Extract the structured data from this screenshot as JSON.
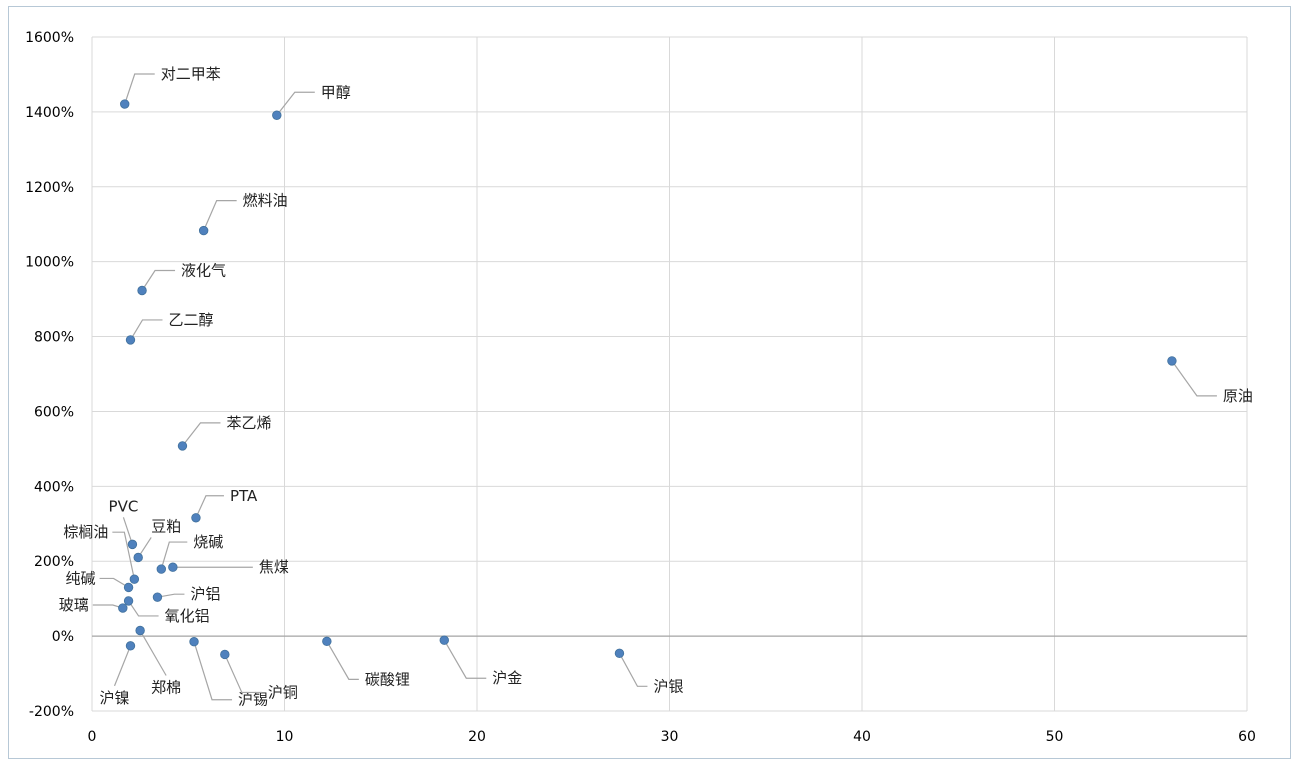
{
  "chart_data": {
    "type": "scatter",
    "title": "",
    "xlabel": "",
    "ylabel": "",
    "xlim": [
      0,
      60
    ],
    "ylim": [
      -200,
      1600
    ],
    "x_ticks": [
      "0",
      "10",
      "20",
      "30",
      "40",
      "50",
      "60"
    ],
    "y_ticks": [
      "-200%",
      "0%",
      "200%",
      "400%",
      "600%",
      "800%",
      "1000%",
      "1200%",
      "1400%",
      "1600%"
    ],
    "grid": true,
    "legend": "none",
    "colors": {
      "point": "#4F81BD",
      "grid": "#D9D9D9",
      "axis": "#A6A6A6",
      "leader": "#A6A6A6",
      "border": "#B7C8D6"
    },
    "points": [
      {
        "label": "对二甲苯",
        "x": 1.7,
        "y": 1421
      },
      {
        "label": "甲醇",
        "x": 9.6,
        "y": 1391
      },
      {
        "label": "燃料油",
        "x": 5.8,
        "y": 1083
      },
      {
        "label": "液化气",
        "x": 2.6,
        "y": 923
      },
      {
        "label": "乙二醇",
        "x": 2.0,
        "y": 791
      },
      {
        "label": "原油",
        "x": 56.1,
        "y": 735
      },
      {
        "label": "苯乙烯",
        "x": 4.7,
        "y": 508
      },
      {
        "label": "PTA",
        "x": 5.4,
        "y": 316
      },
      {
        "label": "PVC",
        "x": 2.1,
        "y": 245
      },
      {
        "label": "豆粕",
        "x": 2.4,
        "y": 210
      },
      {
        "label": "棕榈油",
        "x": 2.2,
        "y": 152
      },
      {
        "label": "烧碱",
        "x": 3.6,
        "y": 179
      },
      {
        "label": "焦煤",
        "x": 4.2,
        "y": 184
      },
      {
        "label": "纯碱",
        "x": 1.9,
        "y": 130
      },
      {
        "label": "沪铝",
        "x": 3.4,
        "y": 104
      },
      {
        "label": "玻璃",
        "x": 1.6,
        "y": 75
      },
      {
        "label": "氧化铝",
        "x": 1.9,
        "y": 94
      },
      {
        "label": "郑棉",
        "x": 2.5,
        "y": 15
      },
      {
        "label": "沪镍",
        "x": 2.0,
        "y": -26
      },
      {
        "label": "沪锡",
        "x": 5.3,
        "y": -15
      },
      {
        "label": "沪铜",
        "x": 6.9,
        "y": -49
      },
      {
        "label": "碳酸锂",
        "x": 12.2,
        "y": -14
      },
      {
        "label": "沪金",
        "x": 18.3,
        "y": -11
      },
      {
        "label": "沪银",
        "x": 27.4,
        "y": -46
      }
    ]
  }
}
